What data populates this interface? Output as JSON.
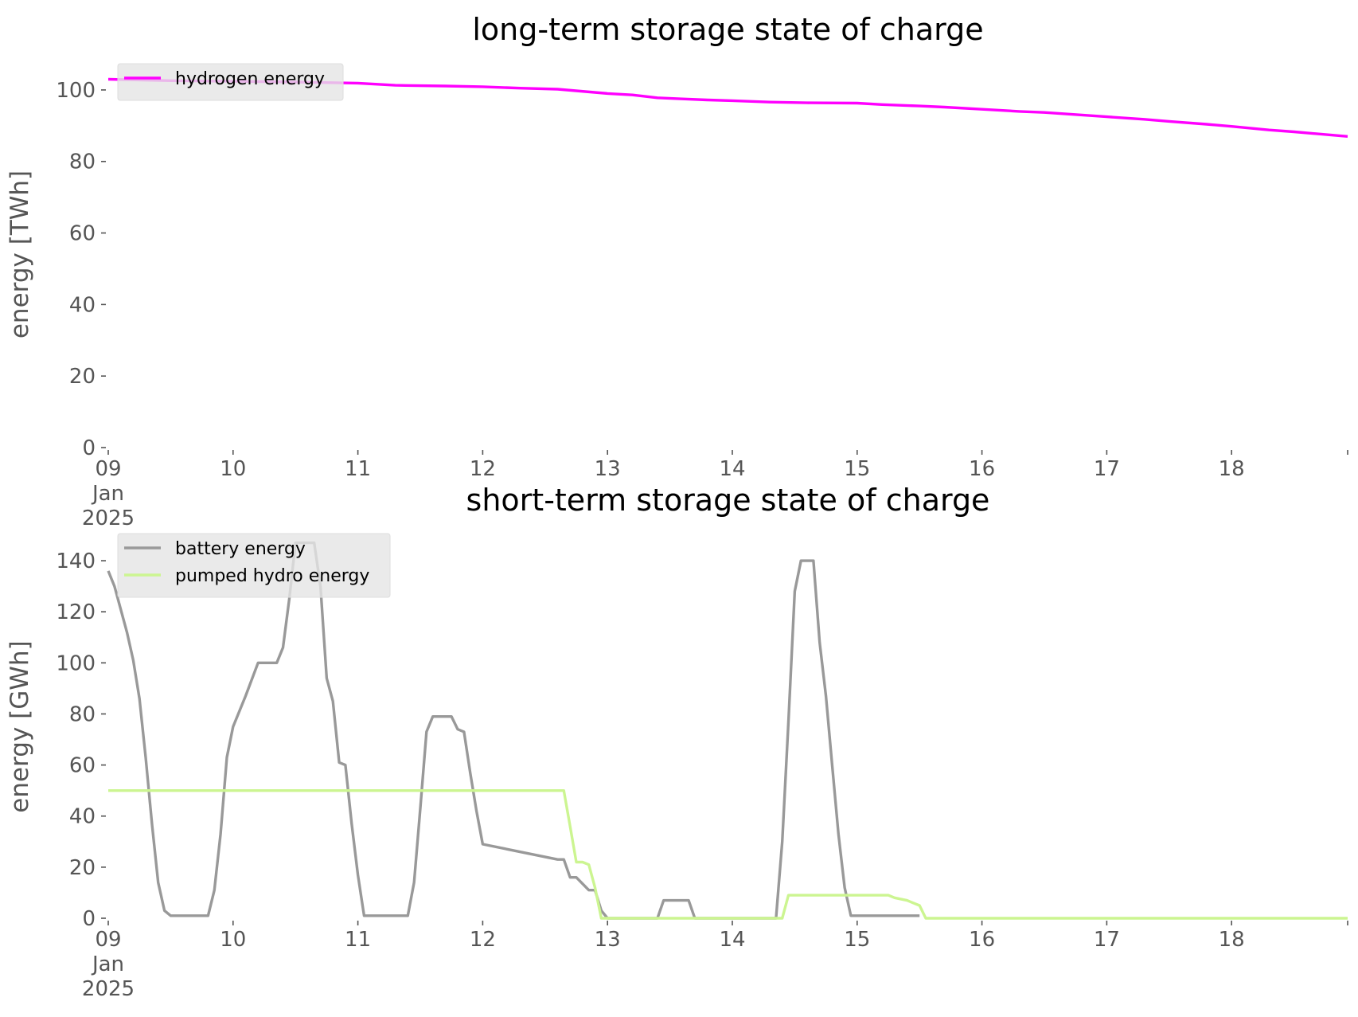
{
  "chart_data": [
    {
      "type": "line",
      "title": "long-term storage state of charge",
      "xlabel": "",
      "ylabel": "energy [TWh]",
      "x_unit": "day (Jan 2025)",
      "xlim": [
        9,
        18.93
      ],
      "ylim": [
        0,
        108
      ],
      "yticks": [
        0,
        20,
        40,
        60,
        80,
        100
      ],
      "xtick_labels": [
        "09\nJan\n2025",
        "10",
        "11",
        "12",
        "13",
        "14",
        "15",
        "16",
        "17",
        "18"
      ],
      "grid": false,
      "legend_position": "upper-left",
      "series": [
        {
          "name": "hydrogen energy",
          "color": "#ff00ff",
          "x": [
            9,
            9.5,
            10,
            10.5,
            11,
            11.3,
            11.7,
            12,
            12.3,
            12.6,
            13,
            13.2,
            13.4,
            13.6,
            13.8,
            14,
            14.3,
            14.6,
            15,
            15.2,
            15.5,
            15.7,
            16,
            16.3,
            16.5,
            17,
            17.3,
            17.5,
            17.8,
            18,
            18.3,
            18.5,
            18.93
          ],
          "y": [
            103,
            102.6,
            102.4,
            102.2,
            101.9,
            101.3,
            101.1,
            100.9,
            100.5,
            100.2,
            99,
            98.6,
            97.8,
            97.5,
            97.2,
            97,
            96.6,
            96.4,
            96.3,
            95.9,
            95.5,
            95.2,
            94.6,
            94,
            93.7,
            92.5,
            91.8,
            91.2,
            90.4,
            89.8,
            88.8,
            88.3,
            87
          ]
        }
      ]
    },
    {
      "type": "line",
      "title": "short-term storage state of charge",
      "xlabel": "",
      "ylabel": "energy [GWh]",
      "x_unit": "day (Jan 2025)",
      "xlim": [
        9,
        18.93
      ],
      "ylim": [
        0,
        150
      ],
      "yticks": [
        0,
        20,
        40,
        60,
        80,
        100,
        120,
        140
      ],
      "xtick_labels": [
        "09\nJan\n2025",
        "10",
        "11",
        "12",
        "13",
        "14",
        "15",
        "16",
        "17",
        "18"
      ],
      "grid": false,
      "legend_position": "upper-left",
      "series": [
        {
          "name": "battery energy",
          "color": "#999999",
          "x": [
            9,
            9.05,
            9.15,
            9.2,
            9.25,
            9.3,
            9.35,
            9.4,
            9.45,
            9.5,
            9.8,
            9.85,
            9.9,
            9.95,
            10,
            10.1,
            10.2,
            10.25,
            10.35,
            10.4,
            10.45,
            10.5,
            10.55,
            10.6,
            10.65,
            10.7,
            10.75,
            10.8,
            10.85,
            10.9,
            10.95,
            11,
            11.05,
            11.1,
            11.15,
            11.2,
            11.3,
            11.35,
            11.4,
            11.45,
            11.5,
            11.55,
            11.6,
            11.65,
            11.7,
            11.75,
            11.8,
            11.85,
            11.9,
            11.95,
            12,
            12.6,
            12.65,
            12.7,
            12.75,
            12.85,
            12.9,
            12.95,
            13,
            13.4,
            13.45,
            13.55,
            13.65,
            13.7,
            14,
            14.35,
            14.4,
            14.45,
            14.5,
            14.55,
            14.6,
            14.65,
            14.7,
            14.75,
            14.8,
            14.85,
            14.9,
            14.95,
            15,
            15.5
          ],
          "y": [
            136,
            130,
            112,
            101,
            86,
            63,
            37,
            14,
            3,
            1,
            1,
            11,
            33,
            63,
            75,
            87,
            100,
            100,
            100,
            106,
            125,
            147,
            147,
            147,
            147,
            130,
            94,
            85,
            61,
            60,
            37,
            17,
            1,
            1,
            1,
            1,
            1,
            1,
            1,
            14,
            43,
            73,
            79,
            79,
            79,
            79,
            74,
            73,
            57,
            42,
            29,
            23,
            23,
            16,
            16,
            11,
            11,
            3,
            0,
            0,
            7,
            7,
            7,
            0,
            0,
            0,
            30,
            77,
            128,
            140,
            140,
            140,
            108,
            87,
            60,
            33,
            12,
            1,
            1,
            1
          ]
        },
        {
          "name": "pumped hydro energy",
          "color": "#ccf591",
          "x": [
            9,
            12.6,
            12.65,
            12.7,
            12.75,
            12.8,
            12.85,
            12.9,
            12.95,
            14.35,
            14.4,
            14.45,
            14.5,
            15,
            15.25,
            15.3,
            15.4,
            15.45,
            15.5,
            15.55,
            18.93
          ],
          "y": [
            50,
            50,
            50,
            36,
            22,
            22,
            21,
            12,
            0,
            0,
            0,
            9,
            9,
            9,
            9,
            8,
            7,
            6,
            5,
            0,
            0
          ]
        }
      ]
    }
  ]
}
